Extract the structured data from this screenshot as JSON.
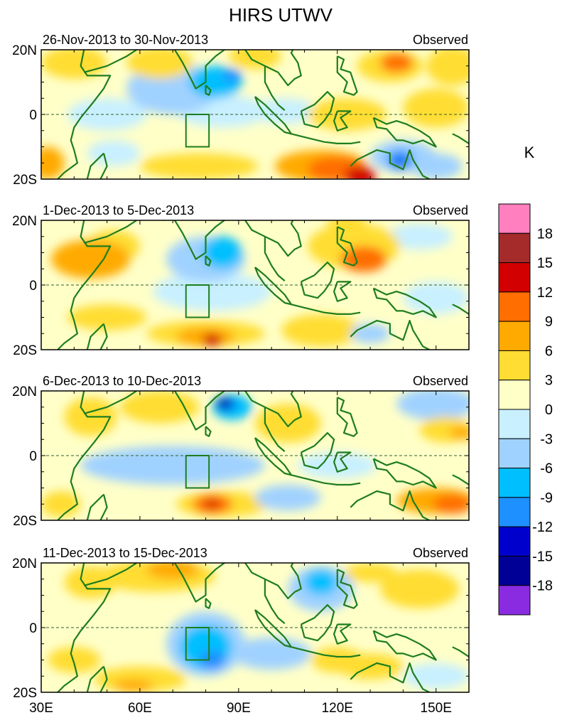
{
  "chart_data": {
    "type": "heatmap",
    "title": "HIRS UTWV",
    "colorbar": {
      "unit": "K",
      "ticks": [
        "18",
        "15",
        "12",
        "9",
        "6",
        "3",
        "0",
        "-3",
        "-6",
        "-9",
        "-12",
        "-15",
        "-18"
      ],
      "colors": [
        "#ff7fbf",
        "#a52a2a",
        "#d20000",
        "#ff6e00",
        "#ffaa00",
        "#ffdd33",
        "#ffffc8",
        "#c8f0ff",
        "#a0d2ff",
        "#00bfff",
        "#1e90ff",
        "#0000cd",
        "#000096",
        "#8a2be2"
      ]
    },
    "axes": {
      "xlim": [
        30,
        160
      ],
      "ylim": [
        -20,
        20
      ],
      "x_ticks": [
        {
          "v": 30,
          "label": "30E"
        },
        {
          "v": 60,
          "label": "60E"
        },
        {
          "v": 90,
          "label": "90E"
        },
        {
          "v": 120,
          "label": "120E"
        },
        {
          "v": 150,
          "label": "150E"
        }
      ],
      "y_ticks": [
        {
          "v": 20,
          "label": "20N"
        },
        {
          "v": 0,
          "label": "0"
        },
        {
          "v": -20,
          "label": "20S"
        }
      ]
    },
    "panels": [
      {
        "period": "26-Nov-2013 to 30-Nov-2013",
        "label": "Observed",
        "field": [
          {
            "lon": 136,
            "lat": 15,
            "a": 10,
            "b": 5,
            "v": 5
          },
          {
            "lon": 138,
            "lat": 16,
            "a": 5,
            "b": 3,
            "v": 9
          },
          {
            "lon": 155,
            "lat": 15,
            "a": 8,
            "b": 6,
            "v": 4
          },
          {
            "lon": 40,
            "lat": 16,
            "a": 10,
            "b": 5,
            "v": 4
          },
          {
            "lon": 66,
            "lat": 16,
            "a": 10,
            "b": 5,
            "v": 5
          },
          {
            "lon": 95,
            "lat": 18,
            "a": 8,
            "b": 4,
            "v": 3
          },
          {
            "lon": 70,
            "lat": 8,
            "a": 14,
            "b": 8,
            "v": -4
          },
          {
            "lon": 83,
            "lat": 10,
            "a": 8,
            "b": 5,
            "v": -7
          },
          {
            "lon": 88,
            "lat": 12,
            "a": 3,
            "b": 2,
            "v": -10
          },
          {
            "lon": 85,
            "lat": 1,
            "a": 14,
            "b": 5,
            "v": -3
          },
          {
            "lon": 50,
            "lat": 0,
            "a": 12,
            "b": 5,
            "v": -3
          },
          {
            "lon": 104,
            "lat": 1,
            "a": 10,
            "b": 4,
            "v": -3
          },
          {
            "lon": 123,
            "lat": 0,
            "a": 12,
            "b": 5,
            "v": 3
          },
          {
            "lon": 150,
            "lat": 2,
            "a": 10,
            "b": 6,
            "v": 3
          },
          {
            "lon": 78,
            "lat": -16,
            "a": 18,
            "b": 4,
            "v": 5
          },
          {
            "lon": 115,
            "lat": -16,
            "a": 14,
            "b": 5,
            "v": 6
          },
          {
            "lon": 120,
            "lat": -17,
            "a": 9,
            "b": 4,
            "v": 9
          },
          {
            "lon": 127,
            "lat": -19,
            "a": 5,
            "b": 3,
            "v": 14
          },
          {
            "lon": 140,
            "lat": -13,
            "a": 10,
            "b": 5,
            "v": -6
          },
          {
            "lon": 139,
            "lat": -14,
            "a": 4,
            "b": 3,
            "v": -10
          },
          {
            "lon": 139,
            "lat": -15,
            "a": 1.2,
            "b": 1.2,
            "v": -14
          },
          {
            "lon": 150,
            "lat": -16,
            "a": 8,
            "b": 4,
            "v": -4
          },
          {
            "lon": 32,
            "lat": -15,
            "a": 5,
            "b": 5,
            "v": 7
          },
          {
            "lon": 52,
            "lat": -12,
            "a": 8,
            "b": 4,
            "v": -3
          }
        ]
      },
      {
        "period": "1-Dec-2013 to 5-Dec-2013",
        "label": "Observed",
        "field": [
          {
            "lon": 45,
            "lat": 8,
            "a": 12,
            "b": 6,
            "v": 6
          },
          {
            "lon": 52,
            "lat": 12,
            "a": 8,
            "b": 5,
            "v": 5
          },
          {
            "lon": 125,
            "lat": 12,
            "a": 14,
            "b": 7,
            "v": 5
          },
          {
            "lon": 128,
            "lat": 8,
            "a": 7,
            "b": 4,
            "v": 9
          },
          {
            "lon": 123,
            "lat": 19,
            "a": 6,
            "b": 3,
            "v": 5
          },
          {
            "lon": 80,
            "lat": 8,
            "a": 12,
            "b": 7,
            "v": -5
          },
          {
            "lon": 85,
            "lat": 10,
            "a": 6,
            "b": 5,
            "v": -8
          },
          {
            "lon": 82,
            "lat": -2,
            "a": 18,
            "b": 6,
            "v": -3
          },
          {
            "lon": 145,
            "lat": 15,
            "a": 10,
            "b": 4,
            "v": -3
          },
          {
            "lon": 150,
            "lat": -4,
            "a": 10,
            "b": 5,
            "v": -3
          },
          {
            "lon": 80,
            "lat": -15,
            "a": 18,
            "b": 4,
            "v": 5
          },
          {
            "lon": 80,
            "lat": -16,
            "a": 9,
            "b": 3,
            "v": 8
          },
          {
            "lon": 82,
            "lat": -17,
            "a": 3,
            "b": 2,
            "v": 13
          },
          {
            "lon": 115,
            "lat": -14,
            "a": 12,
            "b": 5,
            "v": 5
          },
          {
            "lon": 50,
            "lat": -10,
            "a": 12,
            "b": 4,
            "v": 3
          },
          {
            "lon": 130,
            "lat": -15,
            "a": 6,
            "b": 3,
            "v": -5
          }
        ]
      },
      {
        "period": "6-Dec-2013 to 10-Dec-2013",
        "label": "Observed",
        "field": [
          {
            "lon": 66,
            "lat": 15,
            "a": 12,
            "b": 5,
            "v": 5
          },
          {
            "lon": 88,
            "lat": 15,
            "a": 6,
            "b": 4,
            "v": -9
          },
          {
            "lon": 86,
            "lat": 16,
            "a": 3,
            "b": 2,
            "v": -14
          },
          {
            "lon": 85,
            "lat": 16,
            "a": 1.5,
            "b": 1.2,
            "v": -16
          },
          {
            "lon": 150,
            "lat": 16,
            "a": 12,
            "b": 5,
            "v": -4
          },
          {
            "lon": 153,
            "lat": 8,
            "a": 8,
            "b": 4,
            "v": 5
          },
          {
            "lon": 158,
            "lat": 7,
            "a": 4,
            "b": 2,
            "v": 8
          },
          {
            "lon": 105,
            "lat": 10,
            "a": 10,
            "b": 6,
            "v": 4
          },
          {
            "lon": 45,
            "lat": 12,
            "a": 8,
            "b": 6,
            "v": 4
          },
          {
            "lon": 70,
            "lat": -3,
            "a": 28,
            "b": 6,
            "v": -4
          },
          {
            "lon": 120,
            "lat": -3,
            "a": 12,
            "b": 4,
            "v": -3
          },
          {
            "lon": 85,
            "lat": -15,
            "a": 14,
            "b": 4,
            "v": 5
          },
          {
            "lon": 82,
            "lat": -15,
            "a": 6,
            "b": 3,
            "v": 9
          },
          {
            "lon": 82,
            "lat": -15,
            "a": 2,
            "b": 1.5,
            "v": 13
          },
          {
            "lon": 150,
            "lat": -14,
            "a": 12,
            "b": 4,
            "v": 6
          },
          {
            "lon": 155,
            "lat": -15,
            "a": 6,
            "b": 3,
            "v": 9
          },
          {
            "lon": 105,
            "lat": -13,
            "a": 10,
            "b": 4,
            "v": -5
          },
          {
            "lon": 36,
            "lat": -15,
            "a": 6,
            "b": 4,
            "v": 4
          }
        ]
      },
      {
        "period": "11-Dec-2013 to 15-Dec-2013",
        "label": "Observed",
        "field": [
          {
            "lon": 65,
            "lat": 16,
            "a": 18,
            "b": 5,
            "v": 5
          },
          {
            "lon": 70,
            "lat": 18,
            "a": 8,
            "b": 3,
            "v": 7
          },
          {
            "lon": 45,
            "lat": 14,
            "a": 8,
            "b": 5,
            "v": 4
          },
          {
            "lon": 145,
            "lat": 12,
            "a": 12,
            "b": 6,
            "v": 4
          },
          {
            "lon": 130,
            "lat": 17,
            "a": 8,
            "b": 3,
            "v": 3
          },
          {
            "lon": 115,
            "lat": 12,
            "a": 10,
            "b": 7,
            "v": -5
          },
          {
            "lon": 115,
            "lat": 14,
            "a": 5,
            "b": 4,
            "v": -8
          },
          {
            "lon": 80,
            "lat": -5,
            "a": 12,
            "b": 10,
            "v": -4
          },
          {
            "lon": 80,
            "lat": -6,
            "a": 8,
            "b": 7,
            "v": -8
          },
          {
            "lon": 82,
            "lat": -10,
            "a": 4,
            "b": 3,
            "v": -11
          },
          {
            "lon": 100,
            "lat": -8,
            "a": 12,
            "b": 5,
            "v": -4
          },
          {
            "lon": 60,
            "lat": -16,
            "a": 14,
            "b": 4,
            "v": 5
          },
          {
            "lon": 58,
            "lat": -18,
            "a": 6,
            "b": 2,
            "v": 8
          },
          {
            "lon": 40,
            "lat": -10,
            "a": 8,
            "b": 4,
            "v": 4
          },
          {
            "lon": 130,
            "lat": -12,
            "a": 10,
            "b": 4,
            "v": 4
          },
          {
            "lon": 150,
            "lat": -15,
            "a": 10,
            "b": 4,
            "v": -3
          },
          {
            "lon": 120,
            "lat": -10,
            "a": 8,
            "b": 4,
            "v": 3
          }
        ]
      }
    ],
    "box_region": {
      "lon": [
        74,
        81
      ],
      "lat": [
        -10,
        0
      ]
    }
  }
}
